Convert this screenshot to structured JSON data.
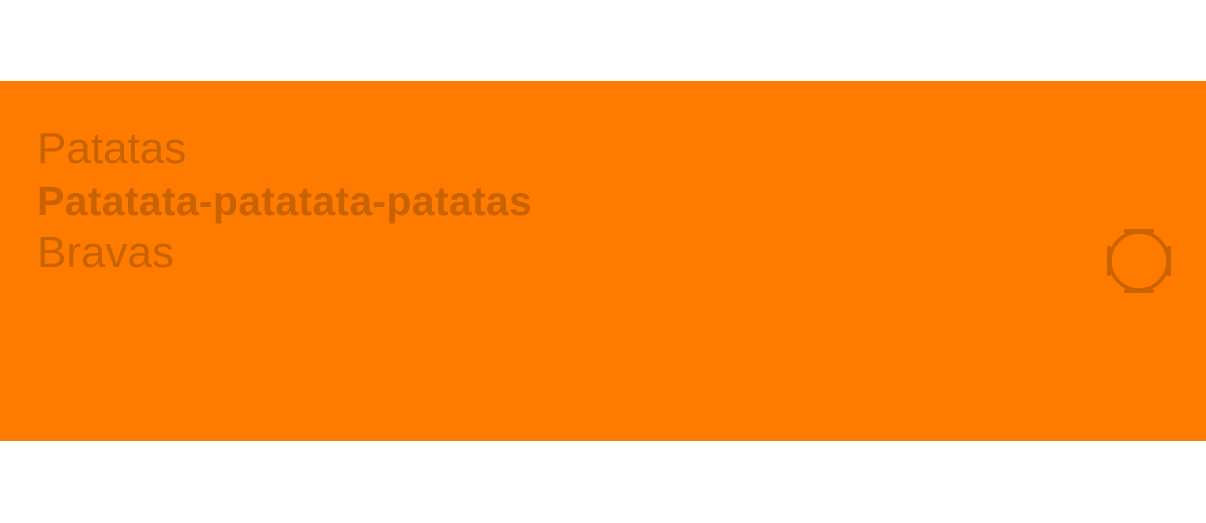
{
  "card": {
    "background_color": "#ff7b00",
    "text_color": "#c96200",
    "lines": [
      {
        "text": "Patatas",
        "weight": "regular"
      },
      {
        "text": "Patatata-patatata-patatas",
        "weight": "bold"
      },
      {
        "text": "Bravas",
        "weight": "regular"
      }
    ],
    "indicator_icon": "ring-indicator-icon"
  }
}
